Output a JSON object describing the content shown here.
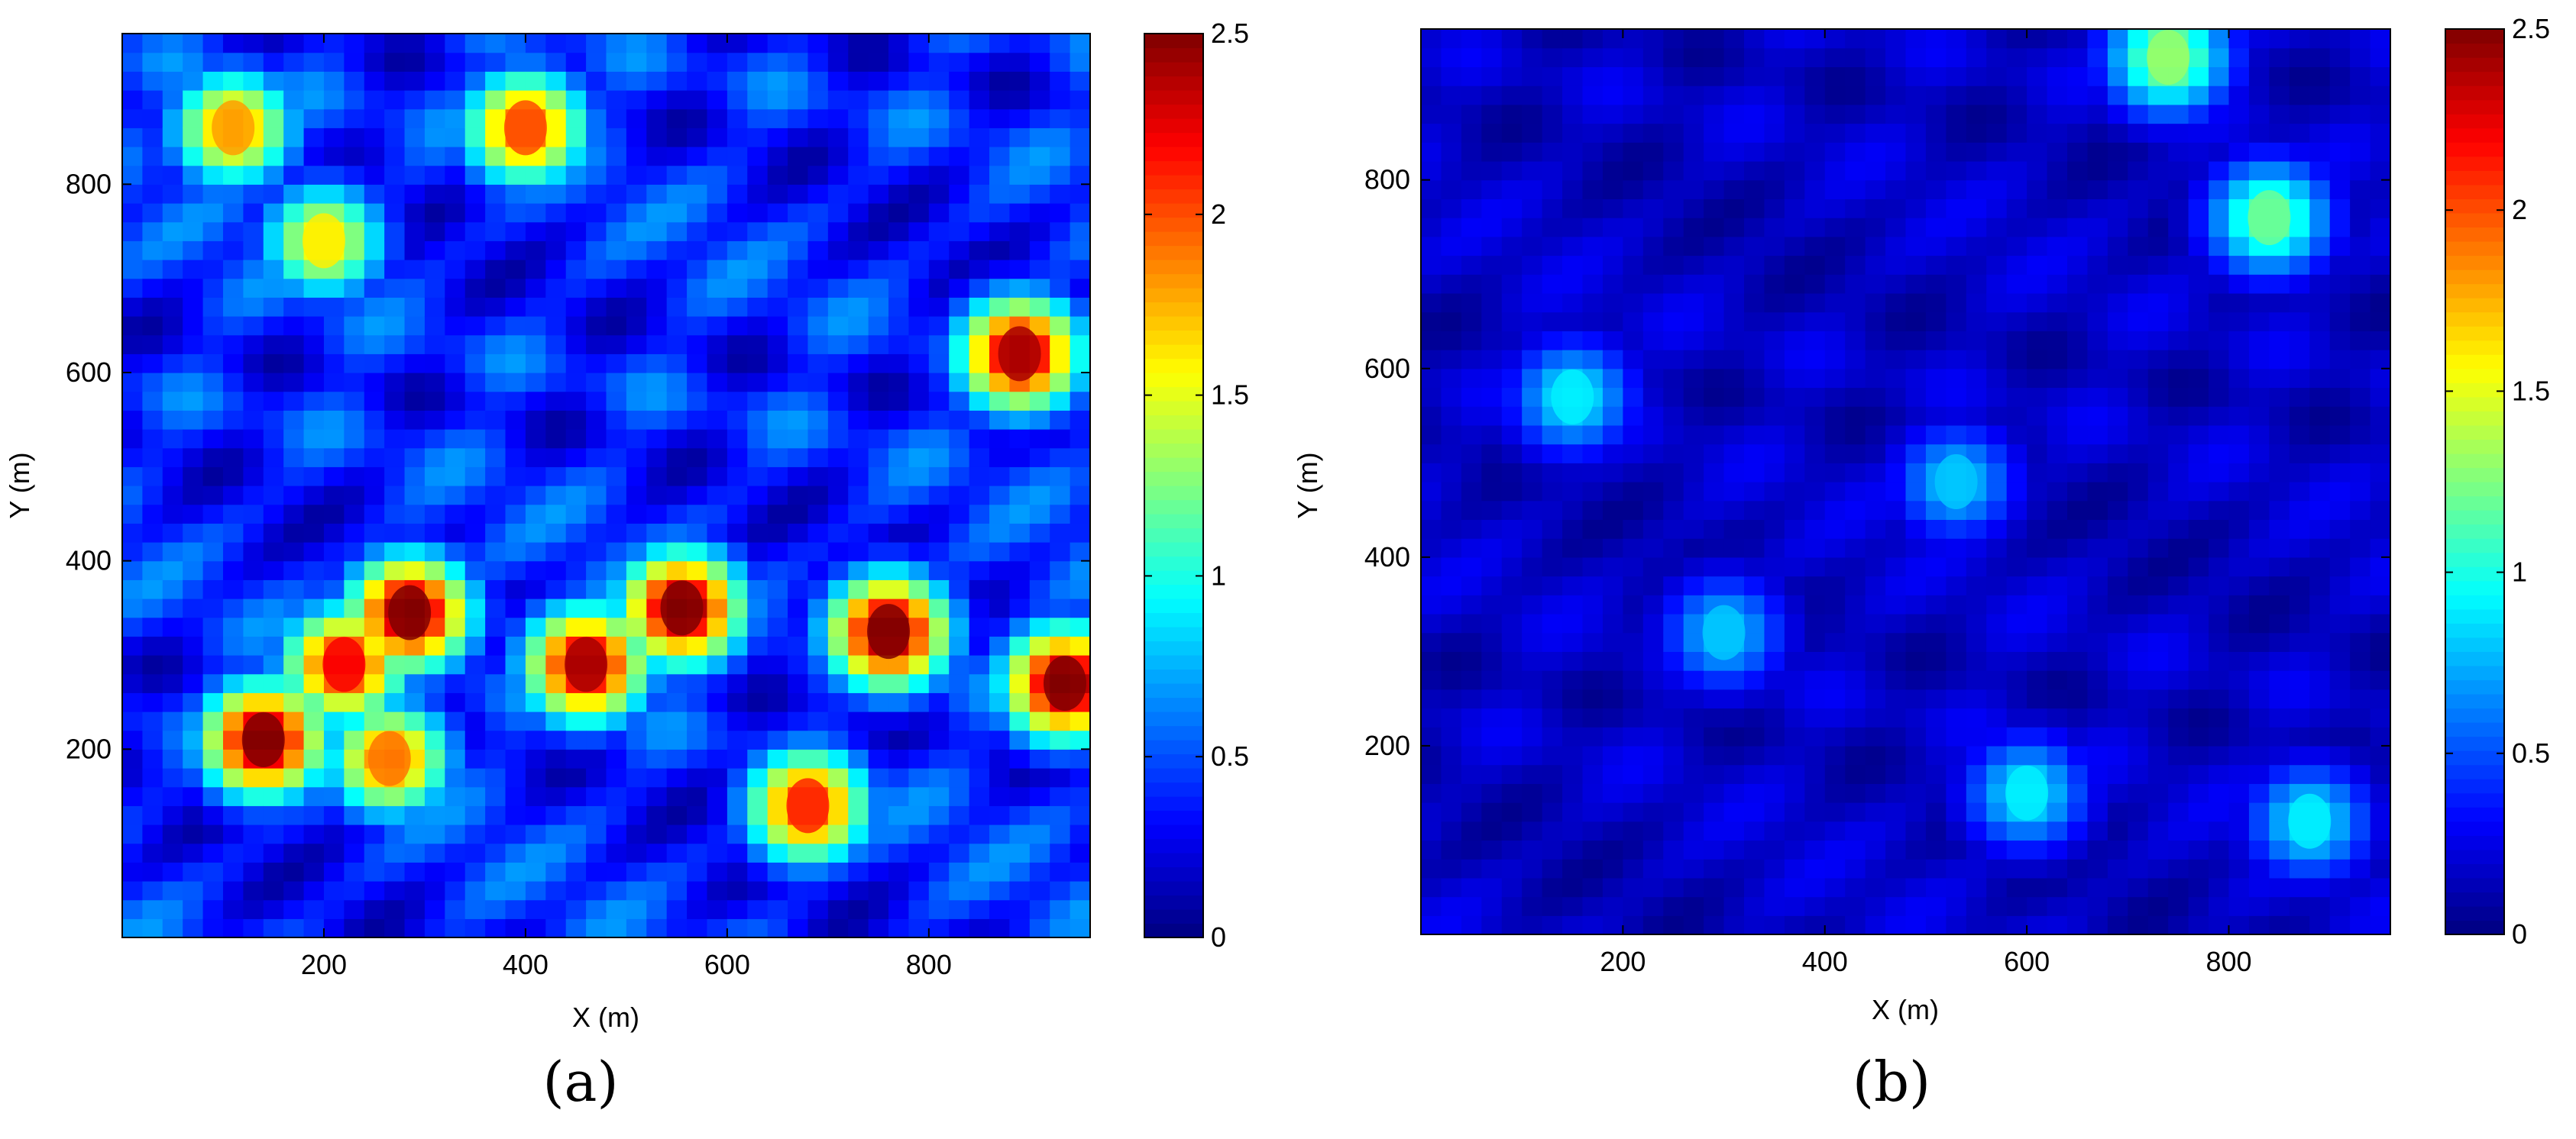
{
  "chart_data": [
    {
      "panel": "a",
      "type": "heatmap",
      "caption": "(a)",
      "xlabel": "X (m)",
      "ylabel": "Y (m)",
      "xlim": [
        0,
        960
      ],
      "ylim": [
        0,
        960
      ],
      "xticks": [
        200,
        400,
        600,
        800
      ],
      "yticks": [
        200,
        400,
        600,
        800
      ],
      "colorbar": {
        "min": 0,
        "max": 2.5,
        "ticks": [
          "0",
          "0.5",
          "1",
          "1.5",
          "2",
          "2.5"
        ],
        "colormap": "jet"
      },
      "hotspots": [
        {
          "x": 140,
          "y": 210,
          "value": 2.5
        },
        {
          "x": 220,
          "y": 290,
          "value": 2.2
        },
        {
          "x": 285,
          "y": 345,
          "value": 2.5
        },
        {
          "x": 265,
          "y": 190,
          "value": 1.9
        },
        {
          "x": 460,
          "y": 290,
          "value": 2.4
        },
        {
          "x": 555,
          "y": 350,
          "value": 2.5
        },
        {
          "x": 760,
          "y": 325,
          "value": 2.5
        },
        {
          "x": 935,
          "y": 270,
          "value": 2.5
        },
        {
          "x": 890,
          "y": 620,
          "value": 2.4
        },
        {
          "x": 680,
          "y": 140,
          "value": 2.1
        },
        {
          "x": 200,
          "y": 740,
          "value": 1.6
        },
        {
          "x": 110,
          "y": 860,
          "value": 1.8
        },
        {
          "x": 400,
          "y": 860,
          "value": 2.0
        }
      ],
      "background_level": 0.7
    },
    {
      "panel": "b",
      "type": "heatmap",
      "caption": "(b)",
      "xlabel": "X (m)",
      "ylabel": "Y (m)",
      "xlim": [
        0,
        960
      ],
      "ylim": [
        0,
        960
      ],
      "xticks": [
        200,
        400,
        600,
        800
      ],
      "yticks": [
        200,
        400,
        600,
        800
      ],
      "colorbar": {
        "min": 0,
        "max": 2.5,
        "ticks": [
          "0",
          "0.5",
          "1",
          "1.5",
          "2",
          "2.5"
        ],
        "colormap": "jet"
      },
      "hotspots": [
        {
          "x": 740,
          "y": 930,
          "value": 1.3
        },
        {
          "x": 840,
          "y": 760,
          "value": 1.2
        },
        {
          "x": 150,
          "y": 570,
          "value": 0.9
        },
        {
          "x": 530,
          "y": 480,
          "value": 0.8
        },
        {
          "x": 300,
          "y": 320,
          "value": 0.8
        },
        {
          "x": 600,
          "y": 150,
          "value": 0.9
        },
        {
          "x": 880,
          "y": 120,
          "value": 0.9
        }
      ],
      "background_level": 0.3
    }
  ]
}
